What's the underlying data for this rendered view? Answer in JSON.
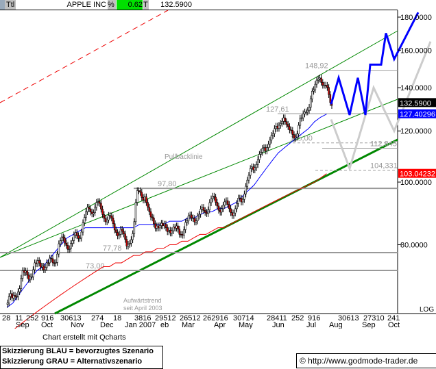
{
  "header": {
    "ttl": "Ttl",
    "name": "APPLE INC",
    "pct_label": "%",
    "pct_value": "0.62",
    "t_label": "T",
    "last": "132.5900"
  },
  "chart_data": {
    "type": "candlestick",
    "title": "APPLE INC",
    "scale": "log",
    "ylim": [
      66,
      190
    ],
    "y_ticks": [
      "180.0000",
      "160.0000",
      "140.0000",
      "120.0000",
      "100.0000",
      "80.0000"
    ],
    "y_tick_values": [
      180,
      160,
      140,
      120,
      100,
      80
    ],
    "price_markers": [
      {
        "label": "132.5900",
        "value": 132.59,
        "color": "#000000"
      },
      {
        "label": "127.40296",
        "value": 127.40296,
        "color": "#0000ff"
      },
      {
        "label": "103.04232",
        "value": 103.04232,
        "color": "#ff0000"
      }
    ],
    "x_day_labels": [
      "28",
      "11",
      "252",
      "916",
      "30613",
      "274",
      "18",
      "3816",
      "29512",
      "26512",
      "262916",
      "30714",
      "28411",
      "252",
      "916",
      "30613",
      "27310",
      "241"
    ],
    "x_month_labels": [
      "Sep",
      "Oct",
      "Nov",
      "Dec",
      "Jan 2007",
      "eb",
      "Mar",
      "Apr",
      "May",
      "Jun",
      "Jul",
      "Aug",
      "Sep",
      "Oct"
    ],
    "scale_label": "LOG",
    "weekly_closes": [
      66,
      68,
      72,
      72,
      74,
      75,
      74,
      76,
      80,
      81,
      80,
      83,
      87,
      91,
      92,
      90,
      88,
      85,
      84,
      80,
      83,
      97,
      95,
      88,
      86,
      85,
      85,
      84,
      84,
      86,
      89,
      88,
      91,
      93,
      93,
      91,
      92,
      90,
      94,
      100,
      105,
      110,
      112,
      118,
      121,
      126,
      120,
      118,
      125,
      130,
      138,
      146,
      140,
      132.59
    ],
    "ma_blue": [
      64,
      65,
      67,
      69,
      71,
      73,
      74,
      76,
      78,
      80,
      82,
      83,
      84,
      85,
      85,
      85,
      85,
      85,
      85,
      85,
      85,
      85,
      86,
      86,
      86,
      86,
      86,
      87,
      87,
      87,
      88,
      88,
      89,
      90,
      90,
      91,
      91,
      92,
      93,
      95,
      97,
      99,
      102,
      105,
      108,
      111,
      113,
      115,
      117,
      119,
      121,
      124,
      126,
      127.4
    ],
    "ma_red": [
      58,
      59,
      60,
      61,
      62,
      63,
      64,
      65,
      66,
      67,
      68,
      69,
      70,
      71,
      72,
      73,
      74,
      74,
      75,
      75,
      76,
      77,
      77,
      78,
      78,
      79,
      79,
      80,
      80,
      81,
      81,
      82,
      83,
      83,
      84,
      85,
      85,
      86,
      87,
      88,
      89,
      90,
      91,
      92,
      93,
      94,
      95,
      96,
      97,
      98,
      99,
      100,
      101.5,
      103.04
    ],
    "levels": [
      {
        "label": "148,92",
        "value": 148.92
      },
      {
        "label": "127,61",
        "value": 127.61
      },
      {
        "label": "115,00",
        "value": 115
      },
      {
        "label": "112,845",
        "value": 112.845
      },
      {
        "label": "104,331",
        "value": 104.331
      },
      {
        "label": "97,80",
        "value": 97.8
      },
      {
        "label": "77,78",
        "value": 77.78
      },
      {
        "label": "73,00",
        "value": 73
      }
    ],
    "annotations": {
      "pullback": "Pullbacklinie",
      "trend1": "Aufwärtstrend",
      "trend2": "seit April 2003"
    },
    "scenario_blue": [
      132,
      145,
      127,
      145,
      127,
      152,
      152,
      170,
      155,
      183
    ],
    "scenario_grey": [
      125,
      105,
      140,
      120,
      165
    ]
  },
  "footer": {
    "credit": "Chart erstellt mit Qcharts",
    "legend1": "Skizzierung BLAU = bevorzugtes Szenario",
    "legend2": "Skizzierung GRAU = Alternativszenario",
    "copyright": "© http://www.godmode-trader.de"
  }
}
